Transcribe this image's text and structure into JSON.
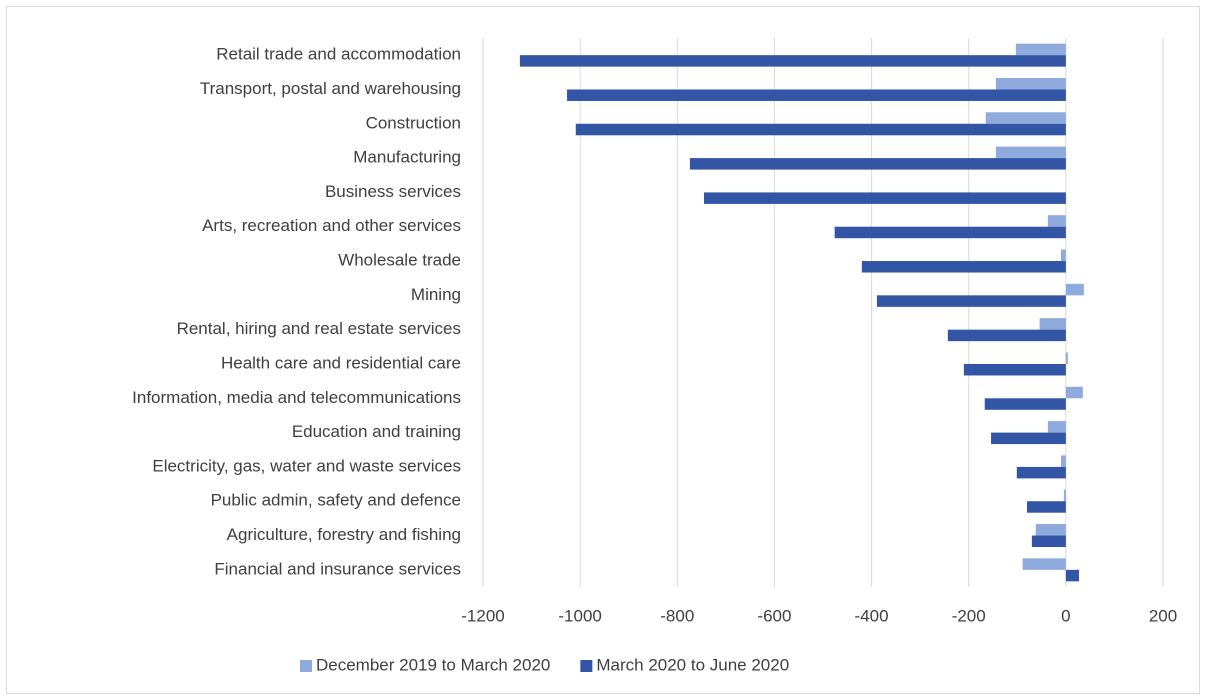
{
  "chart_data": {
    "type": "hbar",
    "categories": [
      "Retail trade and accommodation",
      "Transport, postal and warehousing",
      "Construction",
      "Manufacturing",
      "Business services",
      "Arts, recreation and other services",
      "Wholesale trade",
      "Mining",
      "Rental, hiring and real estate services",
      "Health care and residential care",
      "Information, media and telecommunications",
      "Education and training",
      "Electricity, gas, water and waste services",
      "Public admin, safety and defence",
      "Agriculture, forestry and fishing",
      "Financial and insurance services"
    ],
    "series": [
      {
        "name": "December 2019 to March 2020",
        "color": "#8faadc",
        "values": [
          -103,
          -144,
          -165,
          -144,
          0,
          -37,
          -10,
          37,
          -54,
          4,
          35,
          -37,
          -10,
          -4,
          -62,
          -89
        ]
      },
      {
        "name": "March 2020 to June 2020",
        "color": "#3355a6",
        "values": [
          -1124,
          -1027,
          -1009,
          -774,
          -745,
          -476,
          -420,
          -389,
          -243,
          -210,
          -167,
          -154,
          -101,
          -80,
          -70,
          27
        ]
      }
    ],
    "xlim": [
      -1200,
      200
    ],
    "xticks": [
      -1200,
      -1000,
      -800,
      -600,
      -400,
      -200,
      0,
      200
    ],
    "grid": true,
    "legend": "bottom"
  }
}
